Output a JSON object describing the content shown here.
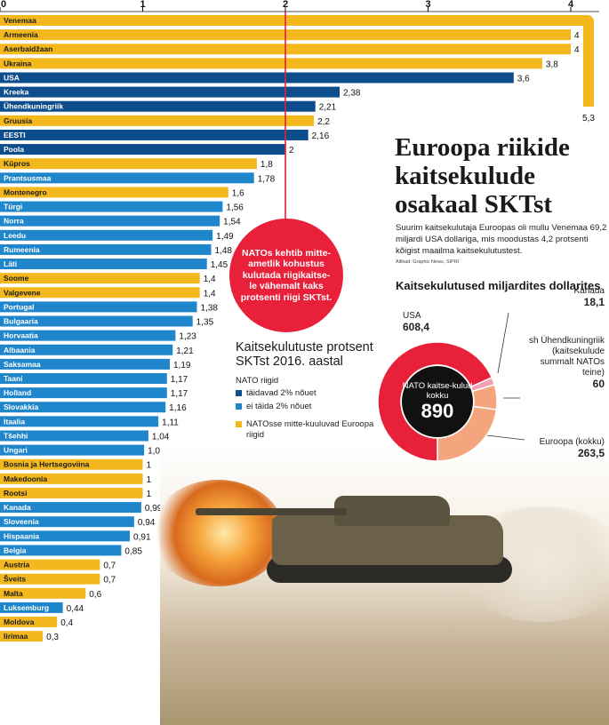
{
  "chart_data": {
    "type": "bar",
    "orientation": "horizontal",
    "xlim": [
      0,
      4.2
    ],
    "xticks": [
      "0",
      "1",
      "2",
      "3",
      "4"
    ],
    "reference_line": 2,
    "categories": [
      "Venemaa",
      "Armeenia",
      "Aserbaidžaan",
      "Ukraina",
      "USA",
      "Kreeka",
      "Ühendkuningriik",
      "Gruusia",
      "EESTI",
      "Poola",
      "Küpros",
      "Prantsusmaa",
      "Montenegro",
      "Türgi",
      "Norra",
      "Leedu",
      "Rumeenia",
      "Läti",
      "Soome",
      "Valgevene",
      "Portugal",
      "Bulgaaria",
      "Horvaatia",
      "Albaania",
      "Saksamaa",
      "Taani",
      "Holland",
      "Slovakkia",
      "Itaalia",
      "Tšehhi",
      "Ungari",
      "Bosnia ja Hertsegoviina",
      "Makedoonia",
      "Rootsi",
      "Kanada",
      "Sloveenia",
      "Hispaania",
      "Belgia",
      "Austria",
      "Šveits",
      "Malta",
      "Luksemburg",
      "Moldova",
      "Iirimaa"
    ],
    "values": [
      5.3,
      4,
      4,
      3.8,
      3.6,
      2.38,
      2.21,
      2.2,
      2.16,
      2,
      1.8,
      1.78,
      1.6,
      1.56,
      1.54,
      1.49,
      1.48,
      1.45,
      1.4,
      1.4,
      1.38,
      1.35,
      1.23,
      1.21,
      1.19,
      1.17,
      1.17,
      1.16,
      1.11,
      1.04,
      1.01,
      1,
      1,
      1,
      0.99,
      0.94,
      0.91,
      0.85,
      0.7,
      0.7,
      0.6,
      0.44,
      0.4,
      0.3
    ],
    "value_labels": [
      "5,3",
      "4",
      "4",
      "3,8",
      "3,6",
      "2,38",
      "2,21",
      "2,2",
      "2,16",
      "2",
      "1,8",
      "1,78",
      "1,6",
      "1,56",
      "1,54",
      "1,49",
      "1,48",
      "1,45",
      "1,4",
      "1,4",
      "1,38",
      "1,35",
      "1,23",
      "1,21",
      "1,19",
      "1,17",
      "1,17",
      "1,16",
      "1,11",
      "1,04",
      "1,01",
      "1",
      "1",
      "1",
      "0,99",
      "0,94",
      "0,91",
      "0,85",
      "0,7",
      "0,7",
      "0,6",
      "0,44",
      "0,4",
      "0,3"
    ],
    "groups": [
      "non",
      "non",
      "non",
      "non",
      "meet",
      "meet",
      "meet",
      "non",
      "meet",
      "meet",
      "non",
      "nomeet",
      "non",
      "nomeet",
      "nomeet",
      "nomeet",
      "nomeet",
      "nomeet",
      "non",
      "non",
      "nomeet",
      "nomeet",
      "nomeet",
      "nomeet",
      "nomeet",
      "nomeet",
      "nomeet",
      "nomeet",
      "nomeet",
      "nomeet",
      "nomeet",
      "non",
      "non",
      "non",
      "nomeet",
      "nomeet",
      "nomeet",
      "nomeet",
      "non",
      "non",
      "non",
      "nomeet",
      "non",
      "non"
    ],
    "colors": {
      "meet": "#0e4d8c",
      "nomeet": "#1f86cc",
      "non": "#f2b81d"
    }
  },
  "title": "Euroopa riikide kaitsekulude osakaal SKTst",
  "intro": "Suurim kaitsekulutaja Euroopas oli mullu Venemaa 69,2 miljardi USA dollariga, mis moodustas 4,2 protsenti kõigist maailma kaitsekulutustest.",
  "source": "Allikad: Graphic News, SIPRI",
  "callout": "NATOs kehtib mitte-ametlik kohustus kulutada riigikaitse-le vähemalt kaks protsenti riigi SKTst.",
  "legend": {
    "title": "Kaitsekulutuste protsent SKTst 2016. aastal",
    "sub": "NATO riigid",
    "meet": "täidavad 2% nõuet",
    "nomeet": "ei täida 2% nõuet",
    "non": "NATOsse mitte-kuuluvad Euroopa riigid"
  },
  "pie": {
    "title": "Kaitsekulutused miljardites dollarites",
    "center_text": "NATO kaitse-kulud kokku",
    "center_value": "890",
    "slices": [
      {
        "label": "USA",
        "value": 608.4,
        "value_label": "608,4",
        "color": "#e8203a"
      },
      {
        "label": "Kanada",
        "value": 18.1,
        "value_label": "18,1",
        "color": "#f39fb0"
      },
      {
        "label": "sh Ühendkuningriik (kaitsekulude summalt NATOs teine)",
        "value": 60,
        "value_label": "60",
        "color": "#f5a57d"
      },
      {
        "label": "Euroopa (kokku)",
        "value": 263.5,
        "value_label": "263,5",
        "color": "#f5a57d"
      }
    ]
  }
}
